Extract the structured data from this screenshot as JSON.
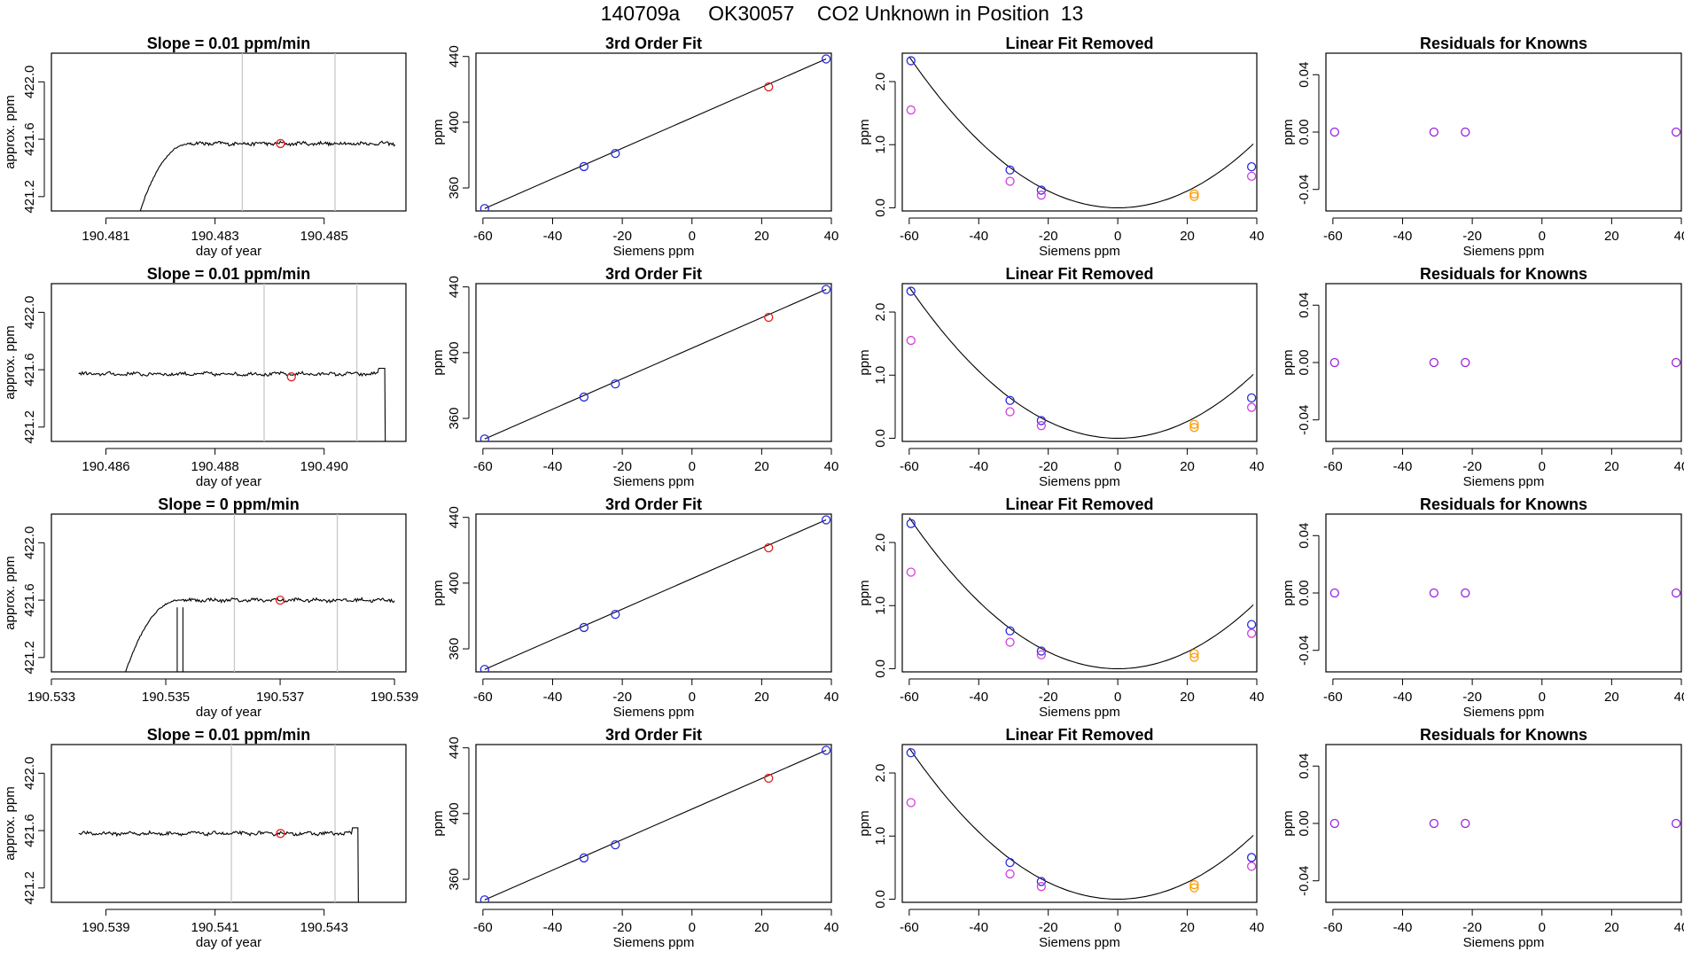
{
  "page": {
    "title": "140709a     OK30057    CO2 Unknown in Position  13"
  },
  "colors": {
    "line": "#000000",
    "vline": "#c8c8c8",
    "red": "#e0201b",
    "blue": "#2a2ae0",
    "magenta": "#d040e0",
    "orange": "#ff9a00",
    "purple": "#9a20e0",
    "axis": "#000000"
  },
  "chart_data": [
    {
      "id": "r1c1",
      "row": 0,
      "col": 0,
      "type": "line",
      "title": "Slope =  0.01  ppm/min",
      "xlabel": "day of year",
      "ylabel": "approx. ppm",
      "xlim": [
        190.48,
        190.4865
      ],
      "ylim": [
        421.1,
        422.2
      ],
      "xticks": [
        "190.481",
        "190.483",
        "190.485"
      ],
      "yticks": [
        "421.2",
        "421.6",
        "422.0"
      ],
      "trace": {
        "start": 190.4815,
        "end": 190.4863,
        "shape": "rise",
        "level": 421.57
      },
      "vlines": [
        190.4835,
        190.4852
      ],
      "marker": {
        "x": 190.4842,
        "y": 421.57,
        "color": "red"
      }
    },
    {
      "id": "r1c2",
      "row": 0,
      "col": 1,
      "type": "scatter",
      "title": "3rd Order Fit",
      "xlabel": "Siemens ppm",
      "ylabel": "ppm",
      "xlim": [
        -62,
        40
      ],
      "ylim": [
        346,
        442
      ],
      "xticks": [
        "-60",
        "-40",
        "-20",
        "0",
        "20",
        "40"
      ],
      "yticks": [
        "360",
        "400",
        "440"
      ],
      "fit": [
        [
          -59.5,
          347.5
        ],
        [
          38.5,
          438.5
        ]
      ],
      "points": [
        {
          "x": -59.5,
          "y": 347.5,
          "c": "blue"
        },
        {
          "x": -31,
          "y": 373,
          "c": "blue"
        },
        {
          "x": -22,
          "y": 381,
          "c": "blue"
        },
        {
          "x": 22,
          "y": 421.5,
          "c": "red"
        },
        {
          "x": 38.5,
          "y": 438.5,
          "c": "blue"
        }
      ]
    },
    {
      "id": "r1c3",
      "row": 0,
      "col": 2,
      "type": "scatter",
      "title": "Linear Fit Removed",
      "xlabel": "Siemens ppm",
      "ylabel": "ppm",
      "xlim": [
        -62,
        40
      ],
      "ylim": [
        -0.05,
        2.45
      ],
      "xticks": [
        "-60",
        "-40",
        "-20",
        "0",
        "20",
        "40"
      ],
      "yticks": [
        "0.0",
        "1.0",
        "2.0"
      ],
      "curve": {
        "a": 0.000665,
        "x0": 0
      },
      "points": [
        {
          "x": -59.5,
          "y": 2.33,
          "c": "blue"
        },
        {
          "x": -59.5,
          "y": 1.55,
          "c": "magenta"
        },
        {
          "x": -31,
          "y": 0.6,
          "c": "blue"
        },
        {
          "x": -31,
          "y": 0.42,
          "c": "magenta"
        },
        {
          "x": -22,
          "y": 0.28,
          "c": "blue"
        },
        {
          "x": -22,
          "y": 0.2,
          "c": "magenta"
        },
        {
          "x": 22,
          "y": 0.22,
          "c": "orange"
        },
        {
          "x": 22,
          "y": 0.18,
          "c": "orange"
        },
        {
          "x": 38.5,
          "y": 0.65,
          "c": "blue"
        },
        {
          "x": 38.5,
          "y": 0.5,
          "c": "magenta"
        }
      ]
    },
    {
      "id": "r1c4",
      "row": 0,
      "col": 3,
      "type": "scatter",
      "title": "Residuals for Knowns",
      "xlabel": "Siemens ppm",
      "ylabel": "ppm",
      "xlim": [
        -62,
        40
      ],
      "ylim": [
        -0.055,
        0.055
      ],
      "xticks": [
        "-60",
        "-40",
        "-20",
        "0",
        "20",
        "40"
      ],
      "yticks": [
        "-0.04",
        "0.00",
        "0.04"
      ],
      "points": [
        {
          "x": -59.5,
          "y": 0,
          "c": "purple"
        },
        {
          "x": -31,
          "y": 0,
          "c": "purple"
        },
        {
          "x": -22,
          "y": 0,
          "c": "purple"
        },
        {
          "x": 38.5,
          "y": 0,
          "c": "purple"
        }
      ]
    },
    {
      "id": "r2c1",
      "row": 1,
      "col": 0,
      "type": "line",
      "title": "Slope =  0.01  ppm/min",
      "xlabel": "day of year",
      "ylabel": "approx. ppm",
      "xlim": [
        190.485,
        190.4915
      ],
      "ylim": [
        421.1,
        422.2
      ],
      "xticks": [
        "190.486",
        "190.488",
        "190.490"
      ],
      "yticks": [
        "421.2",
        "421.6",
        "422.0"
      ],
      "trace": {
        "start": 190.4855,
        "end": 190.4912,
        "shape": "drop",
        "level": 421.57
      },
      "vlines": [
        190.4889,
        190.4906
      ],
      "marker": {
        "x": 190.4894,
        "y": 421.55,
        "color": "red"
      }
    },
    {
      "id": "r2c2",
      "row": 1,
      "col": 1,
      "type": "scatter",
      "title": "3rd Order Fit",
      "xlabel": "Siemens ppm",
      "ylabel": "ppm",
      "xlim": [
        -62,
        40
      ],
      "ylim": [
        346,
        442
      ],
      "xticks": [
        "-60",
        "-40",
        "-20",
        "0",
        "20",
        "40"
      ],
      "yticks": [
        "360",
        "400",
        "440"
      ],
      "fit": [
        [
          -59.5,
          347.5
        ],
        [
          38.5,
          438.5
        ]
      ],
      "points": [
        {
          "x": -59.5,
          "y": 347.5,
          "c": "blue"
        },
        {
          "x": -31,
          "y": 373,
          "c": "blue"
        },
        {
          "x": -22,
          "y": 381,
          "c": "blue"
        },
        {
          "x": 22,
          "y": 421.5,
          "c": "red"
        },
        {
          "x": 38.5,
          "y": 438.5,
          "c": "blue"
        }
      ]
    },
    {
      "id": "r2c3",
      "row": 1,
      "col": 2,
      "type": "scatter",
      "title": "Linear Fit Removed",
      "xlabel": "Siemens ppm",
      "ylabel": "ppm",
      "xlim": [
        -62,
        40
      ],
      "ylim": [
        -0.05,
        2.45
      ],
      "xticks": [
        "-60",
        "-40",
        "-20",
        "0",
        "20",
        "40"
      ],
      "yticks": [
        "0.0",
        "1.0",
        "2.0"
      ],
      "curve": {
        "a": 0.000665,
        "x0": 0
      },
      "points": [
        {
          "x": -59.5,
          "y": 2.33,
          "c": "blue"
        },
        {
          "x": -59.5,
          "y": 1.55,
          "c": "magenta"
        },
        {
          "x": -31,
          "y": 0.6,
          "c": "blue"
        },
        {
          "x": -31,
          "y": 0.42,
          "c": "magenta"
        },
        {
          "x": -22,
          "y": 0.28,
          "c": "blue"
        },
        {
          "x": -22,
          "y": 0.2,
          "c": "magenta"
        },
        {
          "x": 22,
          "y": 0.22,
          "c": "orange"
        },
        {
          "x": 22,
          "y": 0.17,
          "c": "orange"
        },
        {
          "x": 38.5,
          "y": 0.64,
          "c": "blue"
        },
        {
          "x": 38.5,
          "y": 0.49,
          "c": "magenta"
        }
      ]
    },
    {
      "id": "r2c4",
      "row": 1,
      "col": 3,
      "type": "scatter",
      "title": "Residuals for Knowns",
      "xlabel": "Siemens ppm",
      "ylabel": "ppm",
      "xlim": [
        -62,
        40
      ],
      "ylim": [
        -0.055,
        0.055
      ],
      "xticks": [
        "-60",
        "-40",
        "-20",
        "0",
        "20",
        "40"
      ],
      "yticks": [
        "-0.04",
        "0.00",
        "0.04"
      ],
      "points": [
        {
          "x": -59.5,
          "y": 0,
          "c": "purple"
        },
        {
          "x": -31,
          "y": 0,
          "c": "purple"
        },
        {
          "x": -22,
          "y": 0,
          "c": "purple"
        },
        {
          "x": 38.5,
          "y": 0,
          "c": "purple"
        }
      ]
    },
    {
      "id": "r3c1",
      "row": 2,
      "col": 0,
      "type": "line",
      "title": "Slope =  0  ppm/min",
      "xlabel": "day of year",
      "ylabel": "approx. ppm",
      "xlim": [
        190.533,
        190.5392
      ],
      "ylim": [
        421.1,
        422.2
      ],
      "xticks": [
        "190.533",
        "190.535",
        "190.537",
        "190.539"
      ],
      "yticks": [
        "421.2",
        "421.6",
        "422.0"
      ],
      "trace": {
        "start": 190.5342,
        "end": 190.539,
        "shape": "rise",
        "level": 421.6
      },
      "vlines": [
        190.5362,
        190.538
      ],
      "marker": {
        "x": 190.537,
        "y": 421.6,
        "color": "red"
      }
    },
    {
      "id": "r3c2",
      "row": 2,
      "col": 1,
      "type": "scatter",
      "title": "3rd Order Fit",
      "xlabel": "Siemens ppm",
      "ylabel": "ppm",
      "xlim": [
        -62,
        40
      ],
      "ylim": [
        346,
        442
      ],
      "xticks": [
        "-60",
        "-40",
        "-20",
        "0",
        "20",
        "40"
      ],
      "yticks": [
        "360",
        "400",
        "440"
      ],
      "fit": [
        [
          -59.5,
          347.5
        ],
        [
          38.5,
          438.5
        ]
      ],
      "points": [
        {
          "x": -59.5,
          "y": 347.5,
          "c": "blue"
        },
        {
          "x": -31,
          "y": 373,
          "c": "blue"
        },
        {
          "x": -22,
          "y": 381,
          "c": "blue"
        },
        {
          "x": 22,
          "y": 421.5,
          "c": "red"
        },
        {
          "x": 38.5,
          "y": 438.5,
          "c": "blue"
        }
      ]
    },
    {
      "id": "r3c3",
      "row": 2,
      "col": 2,
      "type": "scatter",
      "title": "Linear Fit Removed",
      "xlabel": "Siemens ppm",
      "ylabel": "ppm",
      "xlim": [
        -62,
        40
      ],
      "ylim": [
        -0.05,
        2.45
      ],
      "xticks": [
        "-60",
        "-40",
        "-20",
        "0",
        "20",
        "40"
      ],
      "yticks": [
        "0.0",
        "1.0",
        "2.0"
      ],
      "curve": {
        "a": 0.000665,
        "x0": 0
      },
      "points": [
        {
          "x": -59.5,
          "y": 2.3,
          "c": "blue"
        },
        {
          "x": -59.5,
          "y": 1.53,
          "c": "magenta"
        },
        {
          "x": -31,
          "y": 0.6,
          "c": "blue"
        },
        {
          "x": -31,
          "y": 0.42,
          "c": "magenta"
        },
        {
          "x": -22,
          "y": 0.28,
          "c": "blue"
        },
        {
          "x": -22,
          "y": 0.22,
          "c": "magenta"
        },
        {
          "x": 22,
          "y": 0.24,
          "c": "orange"
        },
        {
          "x": 22,
          "y": 0.18,
          "c": "orange"
        },
        {
          "x": 38.5,
          "y": 0.7,
          "c": "blue"
        },
        {
          "x": 38.5,
          "y": 0.56,
          "c": "magenta"
        }
      ]
    },
    {
      "id": "r3c4",
      "row": 2,
      "col": 3,
      "type": "scatter",
      "title": "Residuals for Knowns",
      "xlabel": "Siemens ppm",
      "ylabel": "ppm",
      "xlim": [
        -62,
        40
      ],
      "ylim": [
        -0.055,
        0.055
      ],
      "xticks": [
        "-60",
        "-40",
        "-20",
        "0",
        "20",
        "40"
      ],
      "yticks": [
        "-0.04",
        "0.00",
        "0.04"
      ],
      "points": [
        {
          "x": -59.5,
          "y": 0,
          "c": "purple"
        },
        {
          "x": -31,
          "y": 0,
          "c": "purple"
        },
        {
          "x": -22,
          "y": 0,
          "c": "purple"
        },
        {
          "x": 38.5,
          "y": 0,
          "c": "purple"
        }
      ]
    },
    {
      "id": "r4c1",
      "row": 3,
      "col": 0,
      "type": "line",
      "title": "Slope =  0.01  ppm/min",
      "xlabel": "day of year",
      "ylabel": "approx. ppm",
      "xlim": [
        190.538,
        190.5445
      ],
      "ylim": [
        421.1,
        422.2
      ],
      "xticks": [
        "190.539",
        "190.541",
        "190.543"
      ],
      "yticks": [
        "421.2",
        "421.6",
        "422.0"
      ],
      "trace": {
        "start": 190.5385,
        "end": 190.5437,
        "shape": "drop",
        "level": 421.58
      },
      "vlines": [
        190.5413,
        190.5432
      ],
      "marker": {
        "x": 190.5422,
        "y": 421.58,
        "color": "red"
      }
    },
    {
      "id": "r4c2",
      "row": 3,
      "col": 1,
      "type": "scatter",
      "title": "3rd Order Fit",
      "xlabel": "Siemens ppm",
      "ylabel": "ppm",
      "xlim": [
        -62,
        40
      ],
      "ylim": [
        346,
        442
      ],
      "xticks": [
        "-60",
        "-40",
        "-20",
        "0",
        "20",
        "40"
      ],
      "yticks": [
        "360",
        "400",
        "440"
      ],
      "fit": [
        [
          -59.5,
          347.5
        ],
        [
          38.5,
          438.5
        ]
      ],
      "points": [
        {
          "x": -59.5,
          "y": 347.5,
          "c": "blue"
        },
        {
          "x": -31,
          "y": 373,
          "c": "blue"
        },
        {
          "x": -22,
          "y": 381,
          "c": "blue"
        },
        {
          "x": 22,
          "y": 421.5,
          "c": "red"
        },
        {
          "x": 38.5,
          "y": 438.5,
          "c": "blue"
        }
      ]
    },
    {
      "id": "r4c3",
      "row": 3,
      "col": 2,
      "type": "scatter",
      "title": "Linear Fit Removed",
      "xlabel": "Siemens ppm",
      "ylabel": "ppm",
      "xlim": [
        -62,
        40
      ],
      "ylim": [
        -0.05,
        2.45
      ],
      "xticks": [
        "-60",
        "-40",
        "-20",
        "0",
        "20",
        "40"
      ],
      "yticks": [
        "0.0",
        "1.0",
        "2.0"
      ],
      "curve": {
        "a": 0.000665,
        "x0": 0
      },
      "points": [
        {
          "x": -59.5,
          "y": 2.32,
          "c": "blue"
        },
        {
          "x": -59.5,
          "y": 1.53,
          "c": "magenta"
        },
        {
          "x": -31,
          "y": 0.58,
          "c": "blue"
        },
        {
          "x": -31,
          "y": 0.4,
          "c": "magenta"
        },
        {
          "x": -22,
          "y": 0.28,
          "c": "blue"
        },
        {
          "x": -22,
          "y": 0.2,
          "c": "magenta"
        },
        {
          "x": 22,
          "y": 0.23,
          "c": "orange"
        },
        {
          "x": 22,
          "y": 0.18,
          "c": "orange"
        },
        {
          "x": 38.5,
          "y": 0.66,
          "c": "blue"
        },
        {
          "x": 38.5,
          "y": 0.52,
          "c": "magenta"
        }
      ]
    },
    {
      "id": "r4c4",
      "row": 3,
      "col": 3,
      "type": "scatter",
      "title": "Residuals for Knowns",
      "xlabel": "Siemens ppm",
      "ylabel": "ppm",
      "xlim": [
        -62,
        40
      ],
      "ylim": [
        -0.055,
        0.055
      ],
      "xticks": [
        "-60",
        "-40",
        "-20",
        "0",
        "20",
        "40"
      ],
      "yticks": [
        "-0.04",
        "0.00",
        "0.04"
      ],
      "points": [
        {
          "x": -59.5,
          "y": 0,
          "c": "purple"
        },
        {
          "x": -31,
          "y": 0,
          "c": "purple"
        },
        {
          "x": -22,
          "y": 0,
          "c": "purple"
        },
        {
          "x": 38.5,
          "y": 0,
          "c": "purple"
        }
      ]
    }
  ]
}
